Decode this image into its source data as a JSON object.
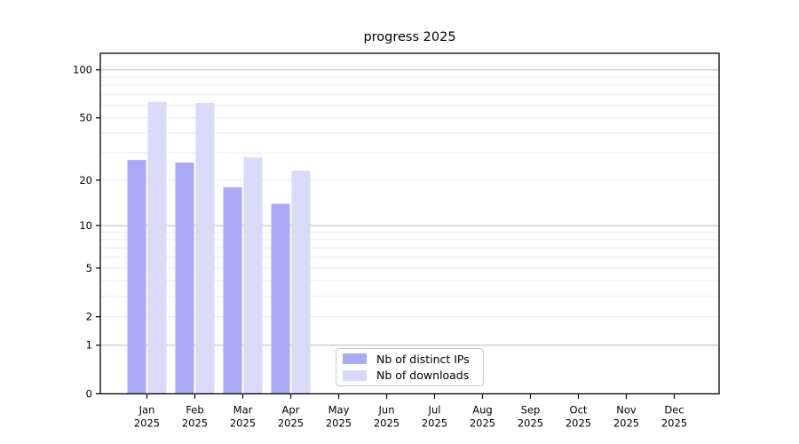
{
  "chart_data": {
    "type": "bar",
    "title": "progress 2025",
    "scale": "log1p",
    "grid": "horizontal major+minor",
    "categories": [
      "Jan",
      "Feb",
      "Mar",
      "Apr",
      "May",
      "Jun",
      "Jul",
      "Aug",
      "Sep",
      "Oct",
      "Nov",
      "Dec"
    ],
    "x_tick_line2": "2025",
    "series": [
      {
        "name": "Nb of distinct IPs",
        "color": "#a9a9f6",
        "values": [
          27,
          26,
          18,
          14,
          null,
          null,
          null,
          null,
          null,
          null,
          null,
          null
        ]
      },
      {
        "name": "Nb of downloads",
        "color": "#d9d9f9",
        "values": [
          63,
          62,
          28,
          23,
          null,
          null,
          null,
          null,
          null,
          null,
          null,
          null
        ]
      }
    ],
    "yticks": [
      0,
      1,
      2,
      5,
      10,
      20,
      50,
      100
    ],
    "ylim": [
      0,
      128
    ],
    "legend_position": "lower center inside",
    "colors": {
      "axis": "#000000",
      "major_grid": "#b9b9b9",
      "minor_grid": "#eaeaea",
      "background": "#ffffff",
      "legend_border": "#c9c9c9"
    }
  }
}
